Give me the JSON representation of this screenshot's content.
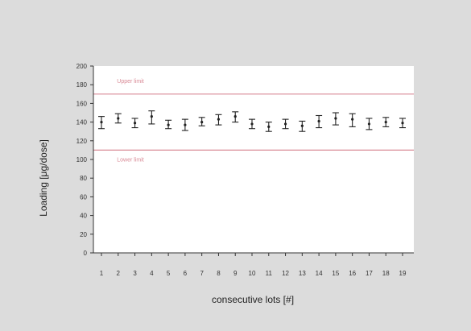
{
  "chart_data": {
    "type": "scatter",
    "title": "",
    "xlabel": "consecutive lots [#]",
    "ylabel": "Loading [μg/dose]",
    "ylim": [
      0,
      200
    ],
    "yticks": [
      0,
      20,
      40,
      60,
      80,
      100,
      120,
      140,
      160,
      180,
      200
    ],
    "categories": [
      "1",
      "2",
      "3",
      "4",
      "5",
      "6",
      "7",
      "8",
      "9",
      "10",
      "11",
      "12",
      "13",
      "14",
      "15",
      "16",
      "17",
      "18",
      "19"
    ],
    "mean": [
      140,
      144,
      139,
      146,
      137,
      137,
      140,
      143,
      146,
      138,
      135,
      138,
      136,
      141,
      144,
      143,
      138,
      140,
      139
    ],
    "low": [
      133,
      139,
      134,
      138,
      133,
      131,
      136,
      137,
      140,
      133,
      130,
      133,
      130,
      134,
      137,
      135,
      132,
      135,
      134
    ],
    "high": [
      146,
      149,
      144,
      152,
      142,
      143,
      145,
      148,
      151,
      143,
      140,
      143,
      141,
      147,
      150,
      149,
      144,
      145,
      144
    ],
    "reference_lines": [
      {
        "value": 170,
        "label": "Upper limit",
        "color": "#d98a96"
      },
      {
        "value": 110,
        "label": "Lower limit",
        "color": "#d98a96"
      }
    ],
    "grid": false,
    "colors": {
      "background": "#dcdcdc",
      "plot": "#ffffff",
      "marks": "#222222"
    }
  }
}
